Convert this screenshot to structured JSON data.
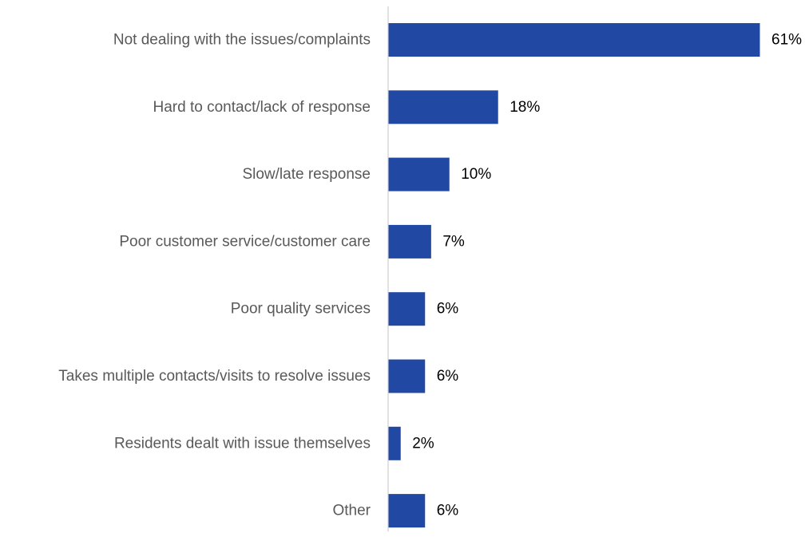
{
  "chart_data": {
    "type": "bar",
    "orientation": "horizontal",
    "categories": [
      "Not dealing with the issues/complaints",
      "Hard to contact/lack of response",
      "Slow/late response",
      "Poor customer service/customer care",
      "Poor quality services",
      "Takes multiple contacts/visits to resolve issues",
      "Residents dealt with issue themselves",
      "Other"
    ],
    "values": [
      61,
      18,
      10,
      7,
      6,
      6,
      2,
      6
    ],
    "data_labels": [
      "61%",
      "18%",
      "10%",
      "7%",
      "6%",
      "6%",
      "2%",
      "6%"
    ],
    "xlim": [
      0,
      61
    ],
    "grid": false,
    "legend": "none",
    "colors": {
      "bar": "#2149A4",
      "axis": "#D9D9D9",
      "category_text": "#595959",
      "value_text": "#000000"
    }
  }
}
